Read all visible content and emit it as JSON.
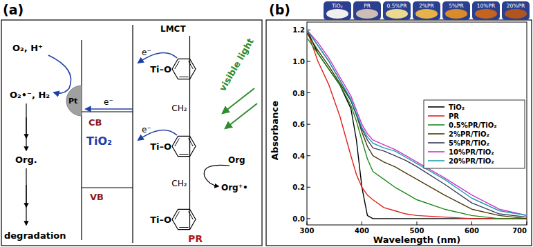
{
  "panels": [
    "(a)",
    "(b)"
  ],
  "diagram": {
    "reactants": "O₂, H⁺",
    "products": "O₂•⁻, H₂",
    "organics": "Org.",
    "result": "degradation",
    "metal": "Pt",
    "semiconductor": "TiO₂",
    "cb": "CB",
    "vb": "VB",
    "electrons": [
      "e⁻",
      "e⁻",
      "e⁻"
    ],
    "bonds": [
      "Ti–O",
      "Ti–O",
      "Ti–O"
    ],
    "bridges": [
      "CH₂",
      "CH₂"
    ],
    "transfer": "LMCT",
    "light": "visible light",
    "donor": "Org",
    "donor_oxidized": "Org⁺•",
    "sensitizer": "PR"
  },
  "photo": {
    "labels": [
      "TiO₂",
      "PR",
      "0.5%PR",
      "2%PR",
      "5%PR",
      "10%PR",
      "20%PR"
    ]
  },
  "chart_data": {
    "type": "line",
    "x_label": "Wavelength (nm)",
    "y_label": "Absorbance",
    "x": [
      300,
      320,
      340,
      360,
      380,
      390,
      400,
      410,
      420,
      440,
      460,
      480,
      500,
      550,
      600,
      650,
      700
    ],
    "series": [
      {
        "name": "TiO₂",
        "color": "#000000",
        "values": [
          1.2,
          1.05,
          0.95,
          0.85,
          0.7,
          0.5,
          0.2,
          0.02,
          0,
          0,
          0,
          0,
          0,
          0,
          0,
          0,
          0
        ]
      },
      {
        "name": "PR",
        "color": "#e0201b",
        "values": [
          1.2,
          1.0,
          0.85,
          0.65,
          0.4,
          0.28,
          0.2,
          0.15,
          0.12,
          0.07,
          0.05,
          0.03,
          0.02,
          0.01,
          0,
          0,
          0
        ]
      },
      {
        "name": "0.5%PR/TiO₂",
        "color": "#1a8a1a",
        "values": [
          1.15,
          1.05,
          0.95,
          0.85,
          0.72,
          0.62,
          0.5,
          0.38,
          0.3,
          0.25,
          0.2,
          0.16,
          0.12,
          0.06,
          0.02,
          0,
          0
        ]
      },
      {
        "name": "2%PR/TiO₂",
        "color": "#4a3a0a",
        "values": [
          1.18,
          1.07,
          0.97,
          0.86,
          0.75,
          0.66,
          0.55,
          0.46,
          0.4,
          0.36,
          0.33,
          0.29,
          0.25,
          0.15,
          0.06,
          0.02,
          0
        ]
      },
      {
        "name": "5%PR/TiO₂",
        "color": "#3a3a5a",
        "values": [
          1.2,
          1.1,
          1.0,
          0.88,
          0.75,
          0.66,
          0.57,
          0.5,
          0.45,
          0.43,
          0.4,
          0.37,
          0.33,
          0.22,
          0.1,
          0.03,
          0.01
        ]
      },
      {
        "name": "10%PR/TiO₂",
        "color": "#cc33cc",
        "values": [
          1.2,
          1.12,
          1.02,
          0.9,
          0.78,
          0.69,
          0.6,
          0.54,
          0.5,
          0.47,
          0.44,
          0.4,
          0.36,
          0.26,
          0.15,
          0.06,
          0.02
        ]
      },
      {
        "name": "20%PR/TiO₂",
        "color": "#20a0b0",
        "values": [
          1.2,
          1.1,
          1.0,
          0.88,
          0.76,
          0.67,
          0.58,
          0.52,
          0.48,
          0.45,
          0.43,
          0.39,
          0.35,
          0.25,
          0.13,
          0.05,
          0.02
        ]
      }
    ],
    "xlim": [
      300,
      700
    ],
    "xticks": [
      300,
      400,
      500,
      600,
      700
    ],
    "ylim": [
      -0.04,
      1.25
    ],
    "yticks": [
      {
        "value": 0,
        "label": "0.0"
      },
      0.2,
      0.4,
      0.6,
      0.8,
      {
        "value": 1,
        "label": "1.0"
      },
      1.2
    ],
    "grid": false,
    "legend": "center right"
  }
}
